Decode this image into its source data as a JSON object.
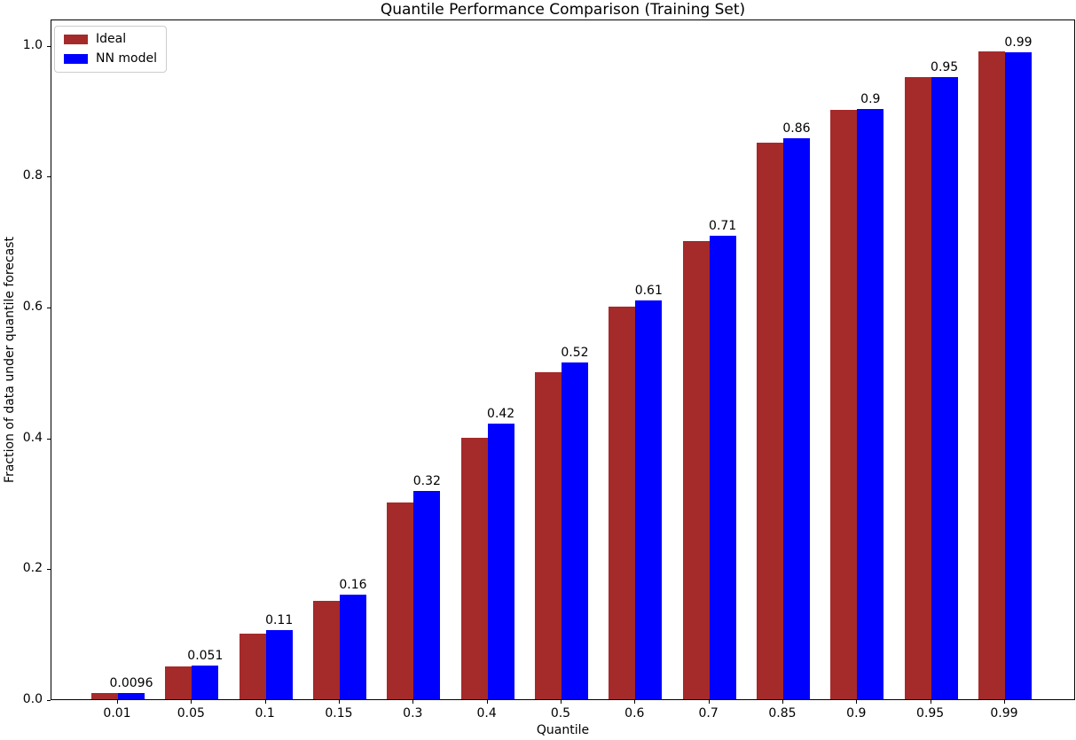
{
  "chart_data": {
    "type": "bar",
    "title": "Quantile Performance Comparison (Training Set)",
    "xlabel": "Quantile",
    "ylabel": "Fraction of data under quantile forecast",
    "categories": [
      "0.01",
      "0.05",
      "0.1",
      "0.15",
      "0.3",
      "0.4",
      "0.5",
      "0.6",
      "0.7",
      "0.85",
      "0.9",
      "0.95",
      "0.99"
    ],
    "series": [
      {
        "name": "Ideal",
        "color": "#a52a2a",
        "values": [
          0.01,
          0.05,
          0.1,
          0.15,
          0.3,
          0.4,
          0.5,
          0.6,
          0.7,
          0.85,
          0.9,
          0.95,
          0.99
        ]
      },
      {
        "name": "NN model",
        "color": "#0000ff",
        "values": [
          0.0096,
          0.051,
          0.106,
          0.16,
          0.318,
          0.421,
          0.515,
          0.61,
          0.708,
          0.857,
          0.902,
          0.95,
          0.988
        ],
        "bar_labels": [
          "0.0096",
          "0.051",
          "0.11",
          "0.16",
          "0.32",
          "0.42",
          "0.52",
          "0.61",
          "0.71",
          "0.86",
          "0.9",
          "0.95",
          "0.99"
        ]
      }
    ],
    "yticks": [
      "0.0",
      "0.2",
      "0.4",
      "0.6",
      "0.8",
      "1.0"
    ],
    "ylim": [
      0,
      1.04
    ],
    "grid": false,
    "legend_position": "upper left",
    "background_color": "#ffffff",
    "text_color": "#000000"
  }
}
